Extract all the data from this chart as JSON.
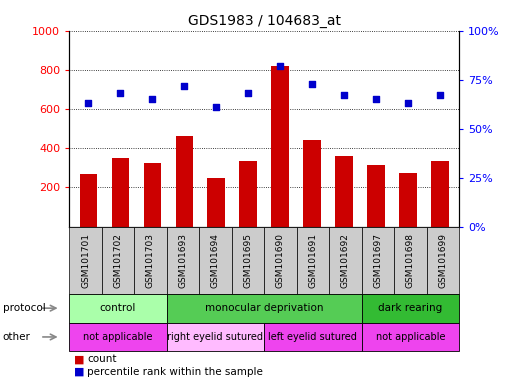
{
  "title": "GDS1983 / 104683_at",
  "samples": [
    "GSM101701",
    "GSM101702",
    "GSM101703",
    "GSM101693",
    "GSM101694",
    "GSM101695",
    "GSM101690",
    "GSM101691",
    "GSM101692",
    "GSM101697",
    "GSM101698",
    "GSM101699"
  ],
  "count_values": [
    270,
    350,
    325,
    460,
    250,
    335,
    820,
    440,
    360,
    315,
    275,
    335
  ],
  "percentile_values": [
    63,
    68,
    65,
    72,
    61,
    68,
    82,
    73,
    67,
    65,
    63,
    67
  ],
  "left_ylim": [
    0,
    1000
  ],
  "left_yticks": [
    200,
    400,
    600,
    800,
    1000
  ],
  "right_ylim": [
    0,
    100
  ],
  "right_yticks": [
    0,
    25,
    50,
    75,
    100
  ],
  "right_yticklabels": [
    "0%",
    "25%",
    "50%",
    "75%",
    "100%"
  ],
  "bar_color": "#cc0000",
  "dot_color": "#0000cc",
  "protocol_groups": [
    {
      "label": "control",
      "start": 0,
      "end": 3,
      "color": "#aaffaa"
    },
    {
      "label": "monocular deprivation",
      "start": 3,
      "end": 9,
      "color": "#55cc55"
    },
    {
      "label": "dark rearing",
      "start": 9,
      "end": 12,
      "color": "#33bb33"
    }
  ],
  "other_groups": [
    {
      "label": "not applicable",
      "start": 0,
      "end": 3,
      "color": "#ee44ee"
    },
    {
      "label": "right eyelid sutured",
      "start": 3,
      "end": 6,
      "color": "#ffbbff"
    },
    {
      "label": "left eyelid sutured",
      "start": 6,
      "end": 9,
      "color": "#ee44ee"
    },
    {
      "label": "not applicable",
      "start": 9,
      "end": 12,
      "color": "#ee44ee"
    }
  ],
  "legend_count_label": "count",
  "legend_pct_label": "percentile rank within the sample",
  "protocol_label": "protocol",
  "other_label": "other"
}
